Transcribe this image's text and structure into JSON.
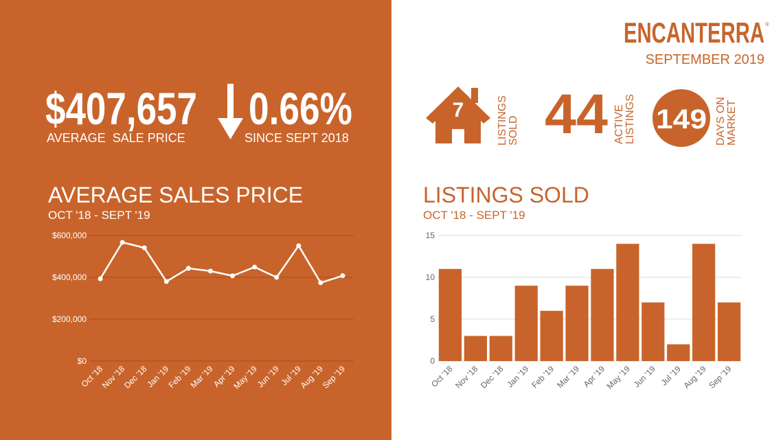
{
  "brand": "ENCANTERRA",
  "brand_mark": "®",
  "period": "SEPTEMBER 2019",
  "stats": {
    "price": "$407,657",
    "price_label": "AVERAGE  SALE PRICE",
    "change": "0.66%",
    "change_label": "SINCE SEPT 2018",
    "sold": "7",
    "sold_label": [
      "LISTINGS",
      "SOLD"
    ],
    "active": "44",
    "active_label": [
      "ACTIVE",
      "LISTINGS"
    ],
    "days": "149",
    "days_label": [
      "DAYS ON",
      "MARKET"
    ]
  },
  "chart_data": [
    {
      "type": "line",
      "title": "AVERAGE SALES PRICE",
      "subtitle": "OCT '18 - SEPT '19",
      "categories": [
        "Oct '18",
        "Nov '18",
        "Dec '18",
        "Jan '19",
        "Feb '19",
        "Mar '19",
        "Apr '19",
        "May '19",
        "Jun '19",
        "Jul '19",
        "Aug '19",
        "Sep '19"
      ],
      "values": [
        393000,
        567000,
        541000,
        380000,
        443000,
        430000,
        407000,
        449000,
        400000,
        551000,
        374000,
        407657
      ],
      "color": "#ffffff",
      "ylim": [
        0,
        600000
      ],
      "yticks": [
        {
          "value": 0,
          "label": "$0"
        },
        {
          "value": 200000,
          "label": "$200,000"
        },
        {
          "value": 400000,
          "label": "$400,000"
        },
        {
          "value": 600000,
          "label": "$600,000"
        }
      ],
      "grid": true
    },
    {
      "type": "bar",
      "title": "LISTINGS SOLD",
      "subtitle": "OCT '18 - SEPT '19",
      "categories": [
        "Oct '18",
        "Nov '18",
        "Dec '18",
        "Jan '19",
        "Feb '19",
        "Mar '19",
        "Apr '19",
        "May '19",
        "Jun '19",
        "Jul '19",
        "Aug '19",
        "Sep '19"
      ],
      "values": [
        11,
        3,
        3,
        9,
        6,
        9,
        11,
        14,
        7,
        2,
        14,
        7
      ],
      "color": "#c8642b",
      "ylim": [
        0,
        15
      ],
      "yticks": [
        0,
        5,
        10,
        15
      ],
      "grid": true
    }
  ]
}
